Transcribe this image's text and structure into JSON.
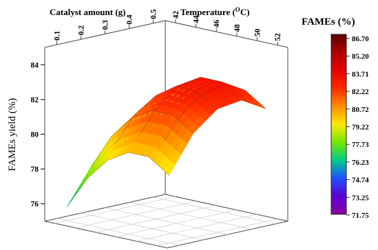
{
  "chart_data": {
    "type": "surface3d",
    "zlabel": "FAMEs yield (%)",
    "axis_left_label": "Catalyst amount (g)",
    "axis_right_label_main": "Temperature (",
    "axis_right_label_sup": "O",
    "axis_right_label_end": "C)",
    "catalyst_ticks": [
      "0.1",
      "0.2",
      "0.3",
      "0.4",
      "0.5"
    ],
    "temperature_ticks": [
      "42",
      "44",
      "46",
      "48",
      "50",
      "52"
    ],
    "z_ticks": [
      "76",
      "78",
      "80",
      "82",
      "84"
    ],
    "zlim": [
      75,
      85
    ],
    "catalyst_amount_g": [
      0.1,
      0.2,
      0.3,
      0.4,
      0.5
    ],
    "temperature_C": [
      42,
      44,
      46,
      48,
      50,
      52
    ],
    "yield_grid": [
      [
        75.8,
        77.7,
        79.0,
        79.7,
        79.7,
        78.9
      ],
      [
        77.8,
        79.8,
        81.1,
        81.8,
        81.8,
        81.0
      ],
      [
        78.8,
        80.8,
        82.1,
        82.9,
        82.8,
        82.1
      ],
      [
        79.0,
        81.0,
        82.4,
        83.1,
        83.1,
        82.3
      ],
      [
        78.3,
        80.3,
        81.6,
        82.4,
        82.3,
        81.5
      ]
    ],
    "legend": {
      "title": "FAMEs (%)",
      "values": [
        "86.70",
        "85.20",
        "83.71",
        "82.22",
        "80.72",
        "79.22",
        "77.73",
        "76.23",
        "74.74",
        "73.25",
        "71.75"
      ],
      "colors": [
        "#5a0000",
        "#b00000",
        "#e60000",
        "#ff2a00",
        "#ff8c00",
        "#ffe800",
        "#73e600",
        "#00cc88",
        "#1e50ff",
        "#5a00d2",
        "#8c00a0"
      ]
    }
  }
}
